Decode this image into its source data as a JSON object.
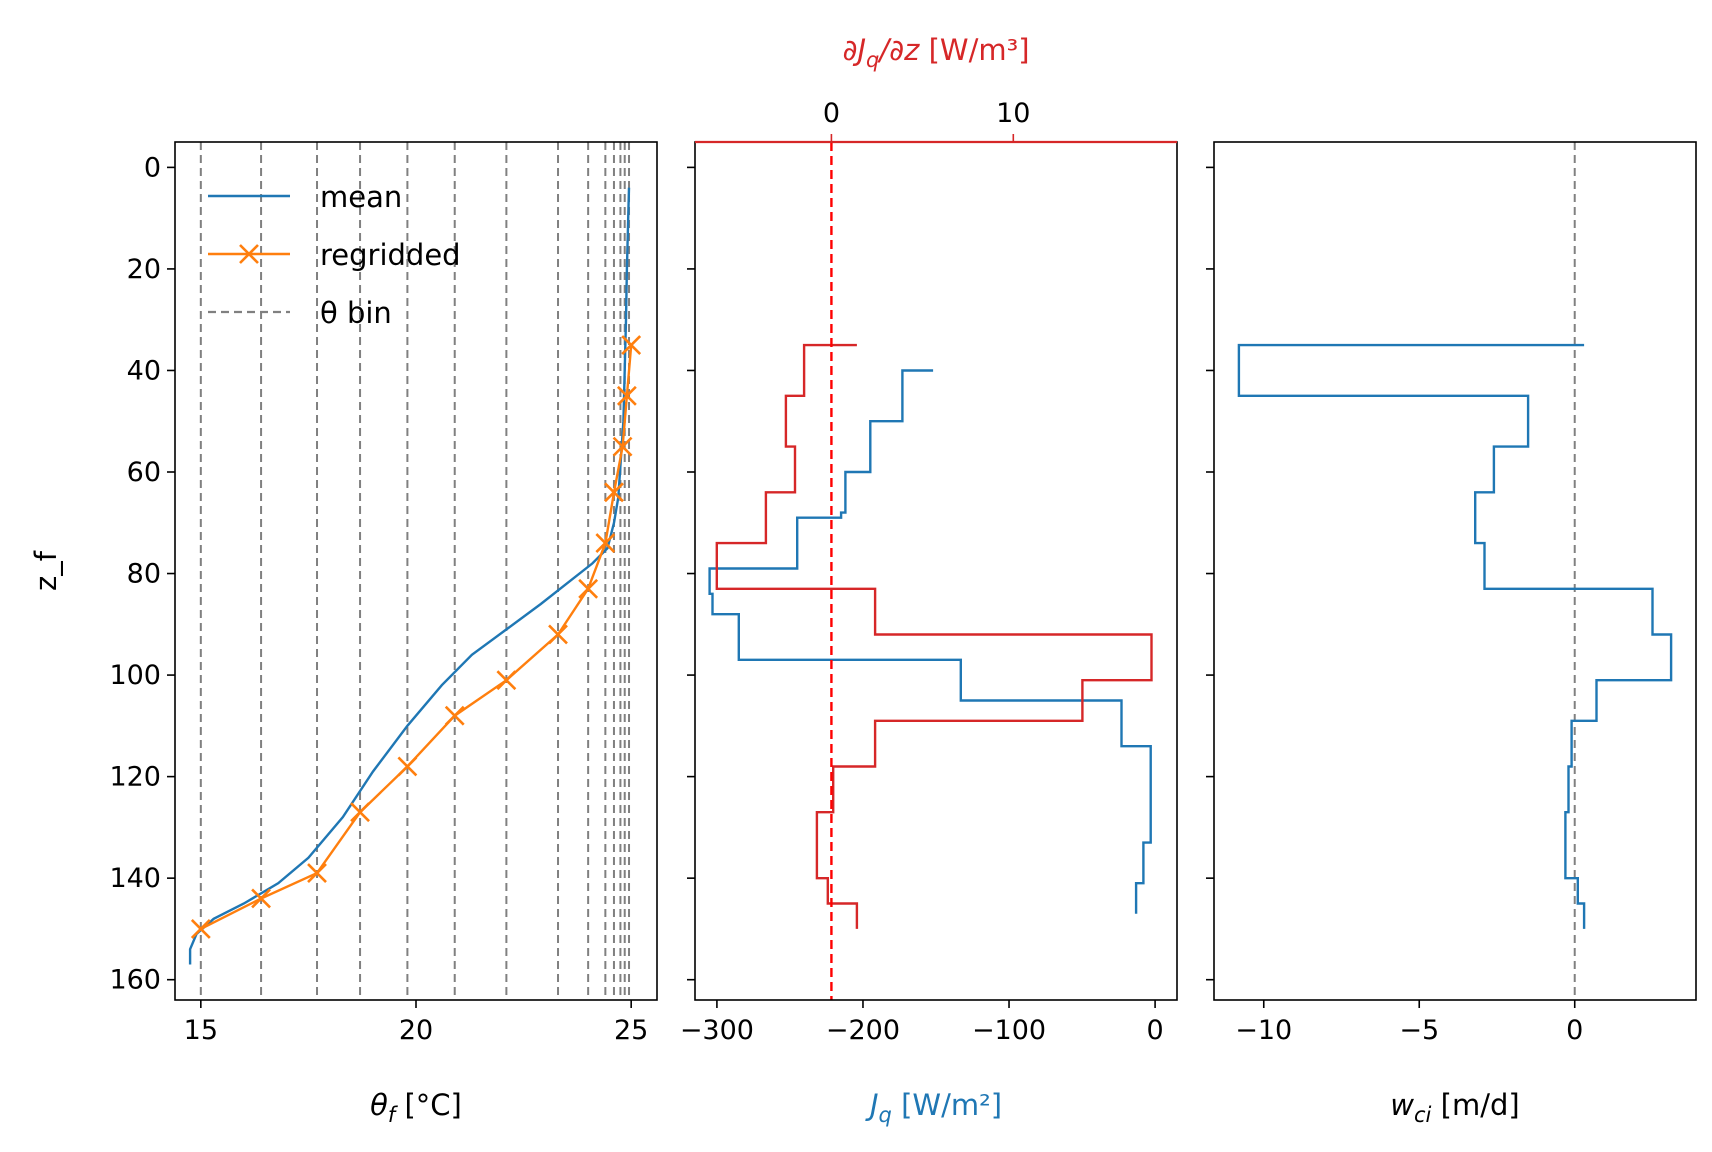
{
  "chart_data": [
    {
      "type": "line",
      "panel": "theta",
      "xlabel_symbol": "θ",
      "xlabel_sub": "f",
      "xlabel_unit": " [°C]",
      "ylabel": "z_f",
      "xlim": [
        14.4,
        25.6
      ],
      "ylim": [
        164,
        -5
      ],
      "xticks": [
        15,
        20,
        25
      ],
      "yticks": [
        0,
        20,
        40,
        60,
        80,
        100,
        120,
        140,
        160
      ],
      "legend": {
        "position": "upper-left",
        "entries": [
          "mean",
          "regridded",
          "θ bin"
        ]
      },
      "series": [
        {
          "name": "mean",
          "color": "#1f77b4",
          "x": [
            24.95,
            24.93,
            24.9,
            24.88,
            24.85,
            24.82,
            24.78,
            24.74,
            24.7,
            24.6,
            24.45,
            24.1,
            23.5,
            22.9,
            22.1,
            21.3,
            20.6,
            19.8,
            19.0,
            18.3,
            17.5,
            16.8,
            16.0,
            15.3,
            14.9,
            14.75,
            14.75
          ],
          "y": [
            4,
            10,
            20,
            30,
            40,
            50,
            55,
            60,
            65,
            70,
            75,
            78,
            82,
            86,
            91,
            96,
            102,
            110,
            119,
            128,
            136,
            141,
            145,
            148,
            151,
            154,
            157
          ]
        },
        {
          "name": "regridded",
          "color": "#ff7f0e",
          "marker": "x",
          "x": [
            25.0,
            24.9,
            24.8,
            24.6,
            24.4,
            24.0,
            23.3,
            22.1,
            20.9,
            19.8,
            18.7,
            17.7,
            16.4,
            15.0
          ],
          "y": [
            35,
            45,
            55,
            64,
            74,
            83,
            92,
            101,
            108,
            118,
            127,
            139,
            144,
            150
          ]
        }
      ],
      "theta_bins": [
        15.0,
        16.4,
        17.7,
        18.7,
        19.8,
        20.9,
        22.1,
        23.3,
        24.0,
        24.4,
        24.6,
        24.75,
        24.85,
        24.95
      ],
      "theta_bin_color": "#808080"
    },
    {
      "type": "line",
      "panel": "heat-flux",
      "xlabel_symbol": "J",
      "xlabel_sub": "q",
      "xlabel_unit": " [W/m²]",
      "xlabel_color": "#1f77b4",
      "xlim": [
        -315,
        15
      ],
      "xticks": [
        -300,
        -200,
        -100,
        0
      ],
      "xtick_labels": [
        "−300",
        "−200",
        "−100",
        "0"
      ],
      "series": [
        {
          "name": "J_q",
          "color": "#1f77b4",
          "x": [
            -152,
            -173,
            -173,
            -195,
            -195,
            -212,
            -212,
            -215,
            -215,
            -245,
            -245,
            -305,
            -305,
            -303,
            -303,
            -285,
            -285,
            -133,
            -133,
            -23,
            -23,
            -3,
            -3,
            -3,
            -3,
            -8,
            -8,
            -13,
            -13,
            -13
          ],
          "y": [
            40,
            40,
            50,
            50,
            60,
            60,
            68,
            68,
            69,
            69,
            79,
            79,
            84,
            84,
            88,
            88,
            97,
            97,
            105,
            105,
            114,
            114,
            122,
            122,
            133,
            133,
            141,
            141,
            147,
            147
          ]
        }
      ],
      "top_axis": {
        "label_symbol": "∂J",
        "label_sub": "q",
        "label_rest": "/∂z",
        "label_unit": " [W/m³]",
        "color": "#d62728",
        "xlim": [
          -7.5,
          19
        ],
        "xticks": [
          0,
          10
        ],
        "xtick_labels": [
          "0",
          "10"
        ],
        "zero_line_color": "#ff0000",
        "series": [
          {
            "name": "dJq/dz",
            "color": "#d62728",
            "x": [
              1.4,
              -1.5,
              -1.5,
              -2.5,
              -2.5,
              -2.0,
              -2.0,
              -3.6,
              -3.6,
              -6.3,
              -6.3,
              2.4,
              2.4,
              17.6,
              17.6,
              13.8,
              13.8,
              2.4,
              2.4,
              0.1,
              0.1,
              -0.8,
              -0.8,
              -0.2,
              -0.2,
              1.4,
              1.4
            ],
            "y": [
              35,
              35,
              45,
              45,
              55,
              55,
              64,
              64,
              74,
              74,
              83,
              83,
              92,
              92,
              101,
              101,
              109,
              109,
              118,
              118,
              127,
              127,
              140,
              140,
              145,
              145,
              150
            ]
          }
        ]
      }
    },
    {
      "type": "line",
      "panel": "velocity",
      "xlabel_symbol": "w",
      "xlabel_sub": "ci",
      "xlabel_unit": " [m/d]",
      "xlim": [
        -11.6,
        3.9
      ],
      "xticks": [
        -10,
        -5,
        0
      ],
      "xtick_labels": [
        "−10",
        "−5",
        "0"
      ],
      "zero_line_color": "#808080",
      "series": [
        {
          "name": "w_ci",
          "color": "#1f77b4",
          "x": [
            0.3,
            -10.8,
            -10.8,
            -1.5,
            -1.5,
            -2.6,
            -2.6,
            -3.2,
            -3.2,
            -2.9,
            -2.9,
            2.5,
            2.5,
            3.1,
            3.1,
            0.7,
            0.7,
            -0.1,
            -0.1,
            -0.2,
            -0.2,
            -0.3,
            -0.3,
            0.1,
            0.1,
            0.3,
            0.3
          ],
          "y": [
            35,
            35,
            45,
            45,
            55,
            55,
            64,
            64,
            74,
            74,
            83,
            83,
            92,
            92,
            101,
            101,
            109,
            109,
            118,
            118,
            127,
            127,
            140,
            140,
            145,
            145,
            150
          ]
        }
      ]
    }
  ]
}
